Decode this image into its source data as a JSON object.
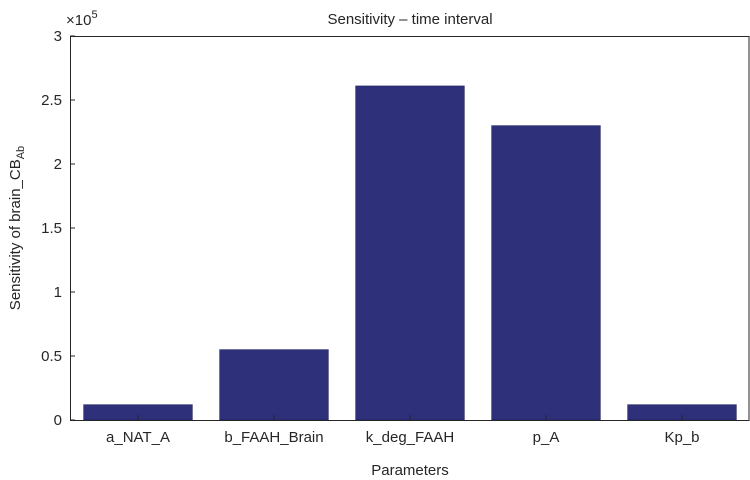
{
  "chart_data": {
    "type": "bar",
    "title": "Sensitivity – time interval",
    "xlabel": "Parameters",
    "ylabel_main": "Sensitivity of brain_CB",
    "ylabel_sub": "Ab",
    "exponent_base": "×10",
    "exponent_power": "5",
    "categories": [
      "a_NAT_A",
      "b_FAAH_Brain",
      "k_deg_FAAH",
      "p_A",
      "Kp_b"
    ],
    "values": [
      0.12,
      0.55,
      2.61,
      2.3,
      0.12
    ],
    "ylim": [
      0,
      3
    ],
    "yticks": [
      0,
      0.5,
      1,
      1.5,
      2,
      2.5,
      3
    ],
    "ytick_labels": [
      "0",
      "0.5",
      "1",
      "1.5",
      "2",
      "2.5",
      "3"
    ],
    "bar_color": "#2e3079",
    "grid": false,
    "legend": "none"
  }
}
